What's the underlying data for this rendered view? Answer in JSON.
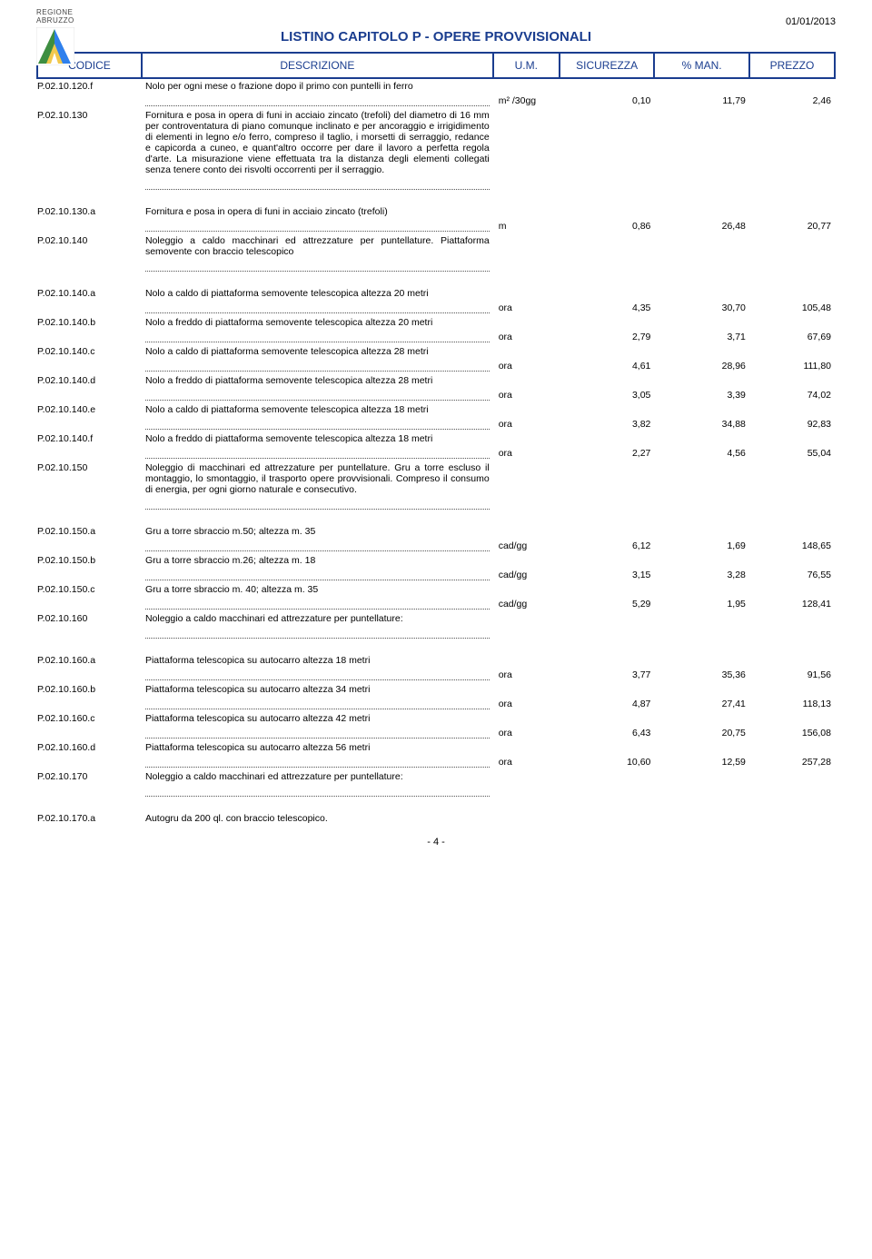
{
  "header": {
    "region1": "REGIONE",
    "region2": "ABRUZZO",
    "date": "01/01/2013",
    "title": "LISTINO CAPITOLO P - OPERE PROVVISIONALI",
    "logo_colors": [
      "#3e8e41",
      "#f2c94c",
      "#2f80ed",
      "#ffffff"
    ]
  },
  "columns": {
    "codice": "CODICE",
    "descrizione": "DESCRIZIONE",
    "um": "U.M.",
    "sicurezza": "SICUREZZA",
    "man": "% MAN.",
    "prezzo": "PREZZO"
  },
  "rows": [
    {
      "code": "P.02.10.120.f",
      "desc": "Nolo per ogni mese o frazione dopo il primo con puntelli in ferro",
      "um": "m² /30gg",
      "sic": "0,10",
      "man": "11,79",
      "prezzo": "2,46",
      "dots": true
    },
    {
      "code": "P.02.10.130",
      "desc": "Fornitura e posa in opera di funi in acciaio zincato (trefoli) del diametro di 16 mm per controventatura di piano comunque inclinato e per ancoraggio e irrigidimento di elementi in legno e/o ferro, compreso il taglio, i morsetti di serraggio, redance e capicorda a cuneo, e quant'altro occorre per dare il lavoro a perfetta regola d'arte. La misurazione viene effettuata tra la distanza degli elementi collegati senza tenere conto dei risvolti occorrenti per il serraggio.",
      "dots": true
    },
    {
      "spacer": true
    },
    {
      "code": "P.02.10.130.a",
      "desc": "Fornitura e posa in opera di funi in acciaio zincato (trefoli)",
      "um": "m",
      "sic": "0,86",
      "man": "26,48",
      "prezzo": "20,77",
      "dots": true
    },
    {
      "code": "P.02.10.140",
      "desc": "Noleggio a caldo macchinari ed attrezzature per puntellature. Piattaforma semovente con braccio telescopico",
      "dots": true
    },
    {
      "spacer": true
    },
    {
      "code": "P.02.10.140.a",
      "desc": "Nolo a caldo di piattaforma semovente telescopica altezza 20 metri",
      "um": "ora",
      "sic": "4,35",
      "man": "30,70",
      "prezzo": "105,48",
      "dots": true
    },
    {
      "code": "P.02.10.140.b",
      "desc": "Nolo a freddo di piattaforma semovente telescopica altezza 20 metri",
      "um": "ora",
      "sic": "2,79",
      "man": "3,71",
      "prezzo": "67,69",
      "dots": true
    },
    {
      "code": "P.02.10.140.c",
      "desc": "Nolo a caldo di piattaforma semovente telescopica altezza 28 metri",
      "um": "ora",
      "sic": "4,61",
      "man": "28,96",
      "prezzo": "111,80",
      "dots": true
    },
    {
      "code": "P.02.10.140.d",
      "desc": "Nolo a freddo di piattaforma semovente telescopica altezza 28 metri",
      "um": "ora",
      "sic": "3,05",
      "man": "3,39",
      "prezzo": "74,02",
      "dots": true
    },
    {
      "code": "P.02.10.140.e",
      "desc": "Nolo a caldo di piattaforma semovente telescopica altezza 18 metri",
      "um": "ora",
      "sic": "3,82",
      "man": "34,88",
      "prezzo": "92,83",
      "dots": true
    },
    {
      "code": "P.02.10.140.f",
      "desc": "Nolo a freddo di piattaforma semovente telescopica altezza 18 metri",
      "um": "ora",
      "sic": "2,27",
      "man": "4,56",
      "prezzo": "55,04",
      "dots": true
    },
    {
      "code": "P.02.10.150",
      "desc": "Noleggio di macchinari ed attrezzature per puntellature. Gru a torre escluso il montaggio, lo smontaggio, il trasporto opere provvisionali. Compreso il consumo di energia, per ogni giorno naturale e consecutivo.",
      "dots": true
    },
    {
      "spacer": true
    },
    {
      "code": "P.02.10.150.a",
      "desc": "Gru a torre sbraccio m.50; altezza m. 35",
      "um": "cad/gg",
      "sic": "6,12",
      "man": "1,69",
      "prezzo": "148,65",
      "dots": true
    },
    {
      "code": "P.02.10.150.b",
      "desc": "Gru a torre sbraccio m.26; altezza m. 18",
      "um": "cad/gg",
      "sic": "3,15",
      "man": "3,28",
      "prezzo": "76,55",
      "dots": true
    },
    {
      "code": "P.02.10.150.c",
      "desc": "Gru a torre sbraccio m. 40; altezza m. 35",
      "um": "cad/gg",
      "sic": "5,29",
      "man": "1,95",
      "prezzo": "128,41",
      "dots": true
    },
    {
      "code": "P.02.10.160",
      "desc": "Noleggio a caldo macchinari ed attrezzature per puntellature:",
      "dots": true
    },
    {
      "spacer": true
    },
    {
      "code": "P.02.10.160.a",
      "desc": "Piattaforma telescopica su autocarro altezza 18 metri",
      "um": "ora",
      "sic": "3,77",
      "man": "35,36",
      "prezzo": "91,56",
      "dots": true
    },
    {
      "code": "P.02.10.160.b",
      "desc": "Piattaforma telescopica su autocarro altezza 34 metri",
      "um": "ora",
      "sic": "4,87",
      "man": "27,41",
      "prezzo": "118,13",
      "dots": true
    },
    {
      "code": "P.02.10.160.c",
      "desc": "Piattaforma telescopica su autocarro altezza 42 metri",
      "um": "ora",
      "sic": "6,43",
      "man": "20,75",
      "prezzo": "156,08",
      "dots": true
    },
    {
      "code": "P.02.10.160.d",
      "desc": "Piattaforma telescopica su autocarro altezza 56 metri",
      "um": "ora",
      "sic": "10,60",
      "man": "12,59",
      "prezzo": "257,28",
      "dots": true
    },
    {
      "code": "P.02.10.170",
      "desc": "Noleggio a caldo macchinari ed attrezzature per puntellature:",
      "dots": true
    },
    {
      "spacer": true
    },
    {
      "code": "P.02.10.170.a",
      "desc": "Autogru da 200 ql. con braccio telescopico."
    }
  ],
  "footer": {
    "pagenum": "- 4 -"
  }
}
